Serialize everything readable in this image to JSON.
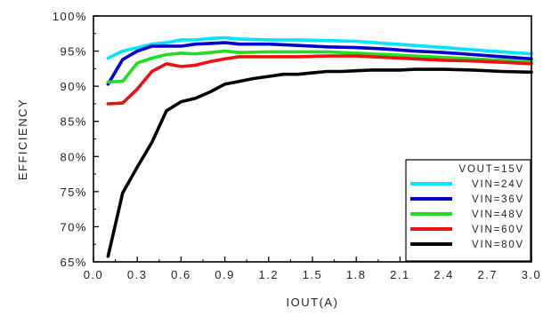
{
  "chart_data": {
    "type": "line",
    "xlabel": "IOUT(A)",
    "ylabel": "EFFICIENCY",
    "xlim": [
      0,
      3.0
    ],
    "ylim": [
      65,
      100
    ],
    "xticks": [
      0.0,
      0.3,
      0.6,
      0.9,
      1.2,
      1.5,
      1.8,
      2.1,
      2.4,
      2.7,
      3.0
    ],
    "xtick_labels": [
      "0.0",
      "0.3",
      "0.6",
      "0.9",
      "1.2",
      "1.5",
      "1.8",
      "2.1",
      "2.4",
      "2.7",
      "3.0"
    ],
    "yticks": [
      65,
      70,
      75,
      80,
      85,
      90,
      95,
      100
    ],
    "ytick_labels": [
      "65%",
      "70%",
      "75%",
      "80%",
      "85%",
      "90%",
      "95%",
      "100%"
    ],
    "grid": false,
    "legend": {
      "title": "VOUT=15V",
      "placement": "bottom-right"
    },
    "series": [
      {
        "name": "VIN=24V",
        "color": "#00e5ff",
        "x": [
          0.1,
          0.2,
          0.3,
          0.4,
          0.5,
          0.6,
          0.7,
          0.8,
          0.9,
          1.0,
          1.2,
          1.4,
          1.6,
          1.8,
          2.0,
          2.2,
          2.4,
          2.6,
          2.8,
          3.0
        ],
        "y": [
          94.0,
          95.0,
          95.5,
          96.0,
          96.2,
          96.6,
          96.6,
          96.8,
          96.9,
          96.7,
          96.6,
          96.6,
          96.5,
          96.4,
          96.1,
          95.8,
          95.5,
          95.2,
          94.9,
          94.6
        ]
      },
      {
        "name": "VIN=36V",
        "color": "#0000cc",
        "x": [
          0.1,
          0.2,
          0.3,
          0.4,
          0.5,
          0.6,
          0.7,
          0.8,
          0.9,
          1.0,
          1.2,
          1.4,
          1.6,
          1.8,
          2.0,
          2.2,
          2.4,
          2.6,
          2.8,
          3.0
        ],
        "y": [
          90.3,
          93.8,
          95.0,
          95.7,
          95.7,
          95.7,
          96.0,
          96.1,
          96.2,
          96.0,
          96.0,
          95.8,
          95.6,
          95.5,
          95.3,
          95.0,
          94.8,
          94.5,
          94.2,
          93.9
        ]
      },
      {
        "name": "VIN=48V",
        "color": "#22dd22",
        "x": [
          0.1,
          0.2,
          0.3,
          0.4,
          0.5,
          0.6,
          0.7,
          0.8,
          0.9,
          1.0,
          1.2,
          1.4,
          1.6,
          1.8,
          2.0,
          2.2,
          2.4,
          2.6,
          2.8,
          3.0
        ],
        "y": [
          90.6,
          90.7,
          93.3,
          94.0,
          94.5,
          94.7,
          94.6,
          94.8,
          95.0,
          94.8,
          94.9,
          94.9,
          94.9,
          94.7,
          94.5,
          94.3,
          94.1,
          93.9,
          93.7,
          93.4
        ]
      },
      {
        "name": "VIN=60V",
        "color": "#ee1111",
        "x": [
          0.1,
          0.2,
          0.3,
          0.4,
          0.5,
          0.6,
          0.7,
          0.8,
          0.9,
          1.0,
          1.2,
          1.4,
          1.6,
          1.8,
          2.0,
          2.2,
          2.4,
          2.6,
          2.8,
          3.0
        ],
        "y": [
          87.5,
          87.6,
          89.6,
          92.1,
          93.2,
          92.8,
          93.0,
          93.5,
          93.9,
          94.2,
          94.2,
          94.2,
          94.3,
          94.3,
          94.1,
          93.9,
          93.7,
          93.6,
          93.4,
          93.2
        ]
      },
      {
        "name": "VIN=80V",
        "color": "#000000",
        "x": [
          0.1,
          0.2,
          0.3,
          0.4,
          0.5,
          0.6,
          0.7,
          0.8,
          0.9,
          1.0,
          1.1,
          1.2,
          1.3,
          1.4,
          1.5,
          1.6,
          1.7,
          1.8,
          1.9,
          2.0,
          2.1,
          2.2,
          2.4,
          2.6,
          2.8,
          3.0
        ],
        "y": [
          65.8,
          74.8,
          78.5,
          82.0,
          86.5,
          87.8,
          88.3,
          89.2,
          90.3,
          90.7,
          91.1,
          91.4,
          91.7,
          91.7,
          91.9,
          92.1,
          92.1,
          92.2,
          92.3,
          92.3,
          92.3,
          92.4,
          92.4,
          92.3,
          92.1,
          92.0
        ]
      }
    ]
  }
}
